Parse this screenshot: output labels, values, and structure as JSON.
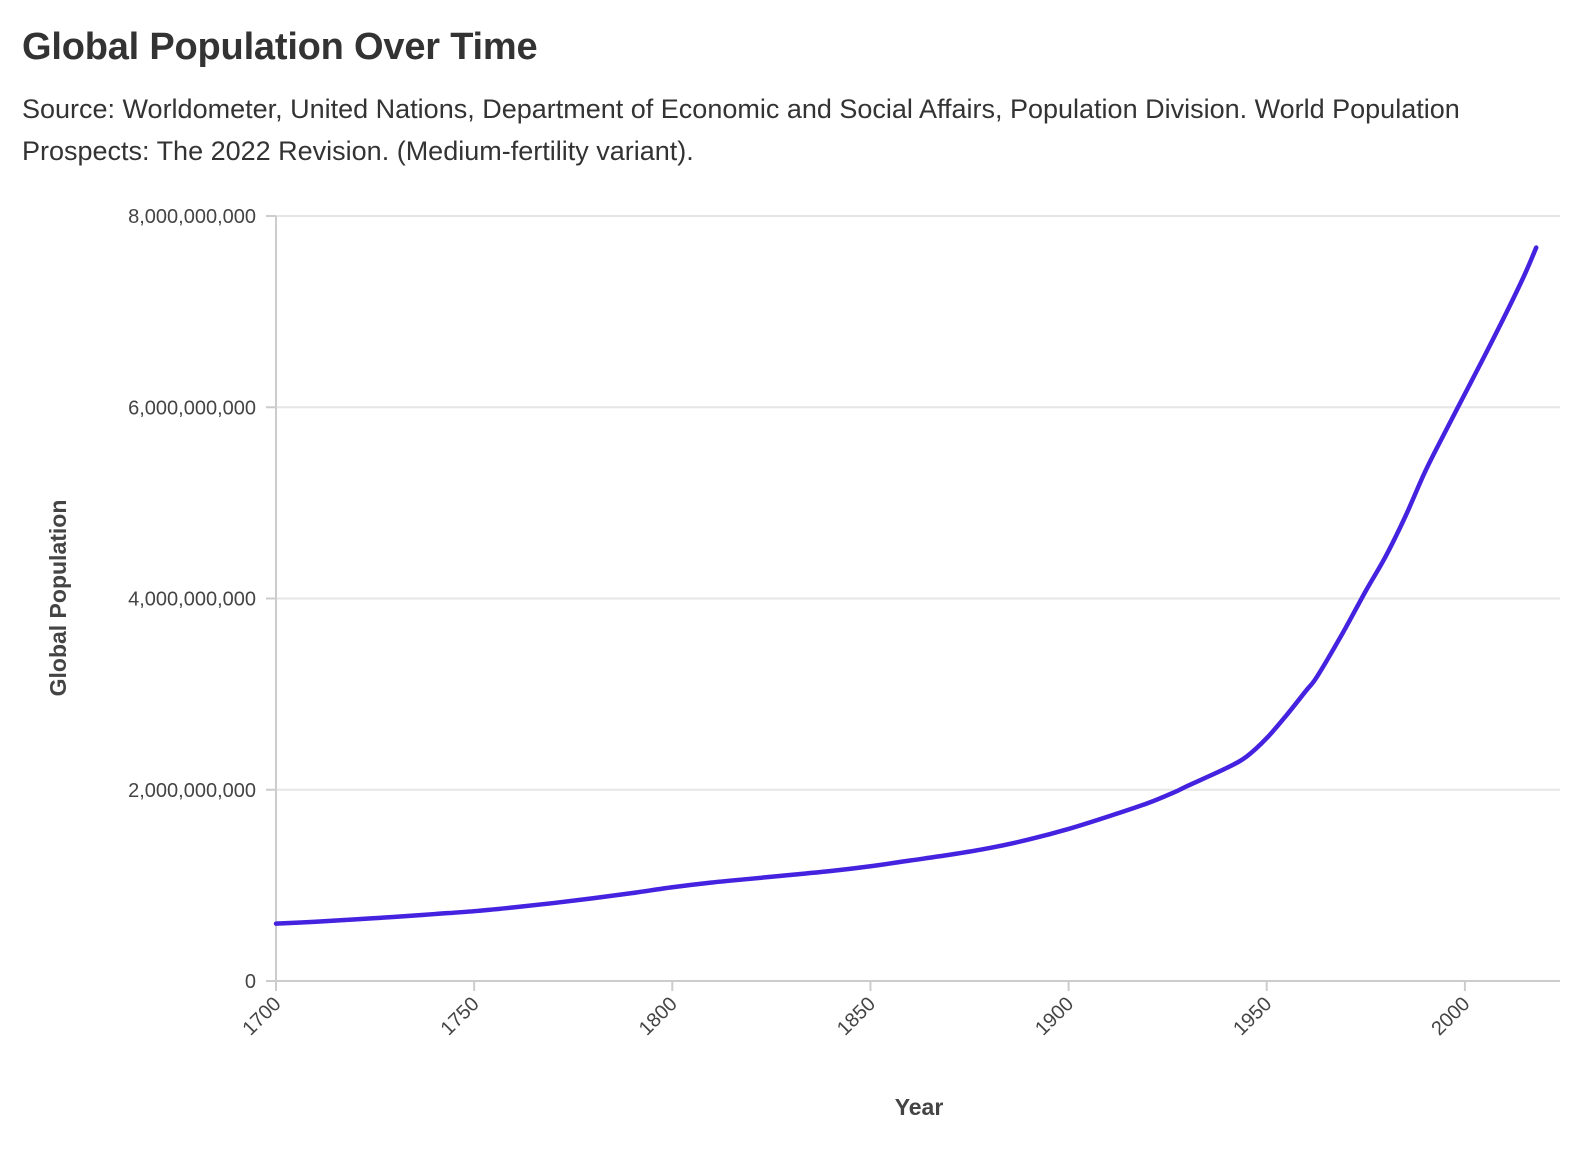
{
  "header": {
    "title": "Global Population Over Time",
    "subtitle": "Source: Worldometer, United Nations, Department of Economic and Social Affairs, Population Division. World Population Prospects: The 2022 Revision. (Medium-fertility variant)."
  },
  "colors": {
    "line": "#4422e0",
    "grid": "#e6e6e6",
    "axis": "#cccccc",
    "text": "#333333"
  },
  "chart_data": {
    "type": "line",
    "title": "Global Population Over Time",
    "subtitle": "Source: Worldometer, United Nations, Department of Economic and Social Affairs, Population Division. World Population Prospects: The 2022 Revision. (Medium-fertility variant).",
    "xlabel": "Year",
    "ylabel": "Global Population",
    "xlim": [
      1700,
      2024
    ],
    "ylim": [
      0,
      8000000000
    ],
    "x_ticks": [
      1700,
      1750,
      1800,
      1850,
      1900,
      1950,
      2000
    ],
    "x_tick_labels": [
      "1700",
      "1750",
      "1800",
      "1850",
      "1900",
      "1950",
      "2000"
    ],
    "y_ticks": [
      0,
      2000000000,
      4000000000,
      6000000000,
      8000000000
    ],
    "y_tick_labels": [
      "0",
      "2,000,000,000",
      "4,000,000,000",
      "6,000,000,000",
      "8,000,000,000"
    ],
    "grid": true,
    "series": [
      {
        "color": "#4422e0",
        "x": [
          1700,
          1710,
          1720,
          1730,
          1740,
          1750,
          1760,
          1770,
          1780,
          1790,
          1800,
          1810,
          1820,
          1830,
          1840,
          1850,
          1860,
          1870,
          1880,
          1890,
          1900,
          1910,
          1920,
          1927,
          1930,
          1940,
          1945,
          1950,
          1955,
          1960,
          1962,
          1965,
          1970,
          1975,
          1980,
          1985,
          1990,
          1995,
          2000,
          2005,
          2010,
          2015,
          2018
        ],
        "y": [
          600000000,
          620000000,
          645000000,
          670000000,
          700000000,
          730000000,
          770000000,
          815000000,
          865000000,
          920000000,
          980000000,
          1030000000,
          1070000000,
          1110000000,
          1150000000,
          1200000000,
          1260000000,
          1320000000,
          1390000000,
          1480000000,
          1590000000,
          1720000000,
          1860000000,
          1980000000,
          2040000000,
          2230000000,
          2350000000,
          2540000000,
          2780000000,
          3040000000,
          3140000000,
          3340000000,
          3700000000,
          4080000000,
          4440000000,
          4860000000,
          5330000000,
          5740000000,
          6140000000,
          6540000000,
          6950000000,
          7380000000,
          7670000000
        ]
      }
    ]
  }
}
